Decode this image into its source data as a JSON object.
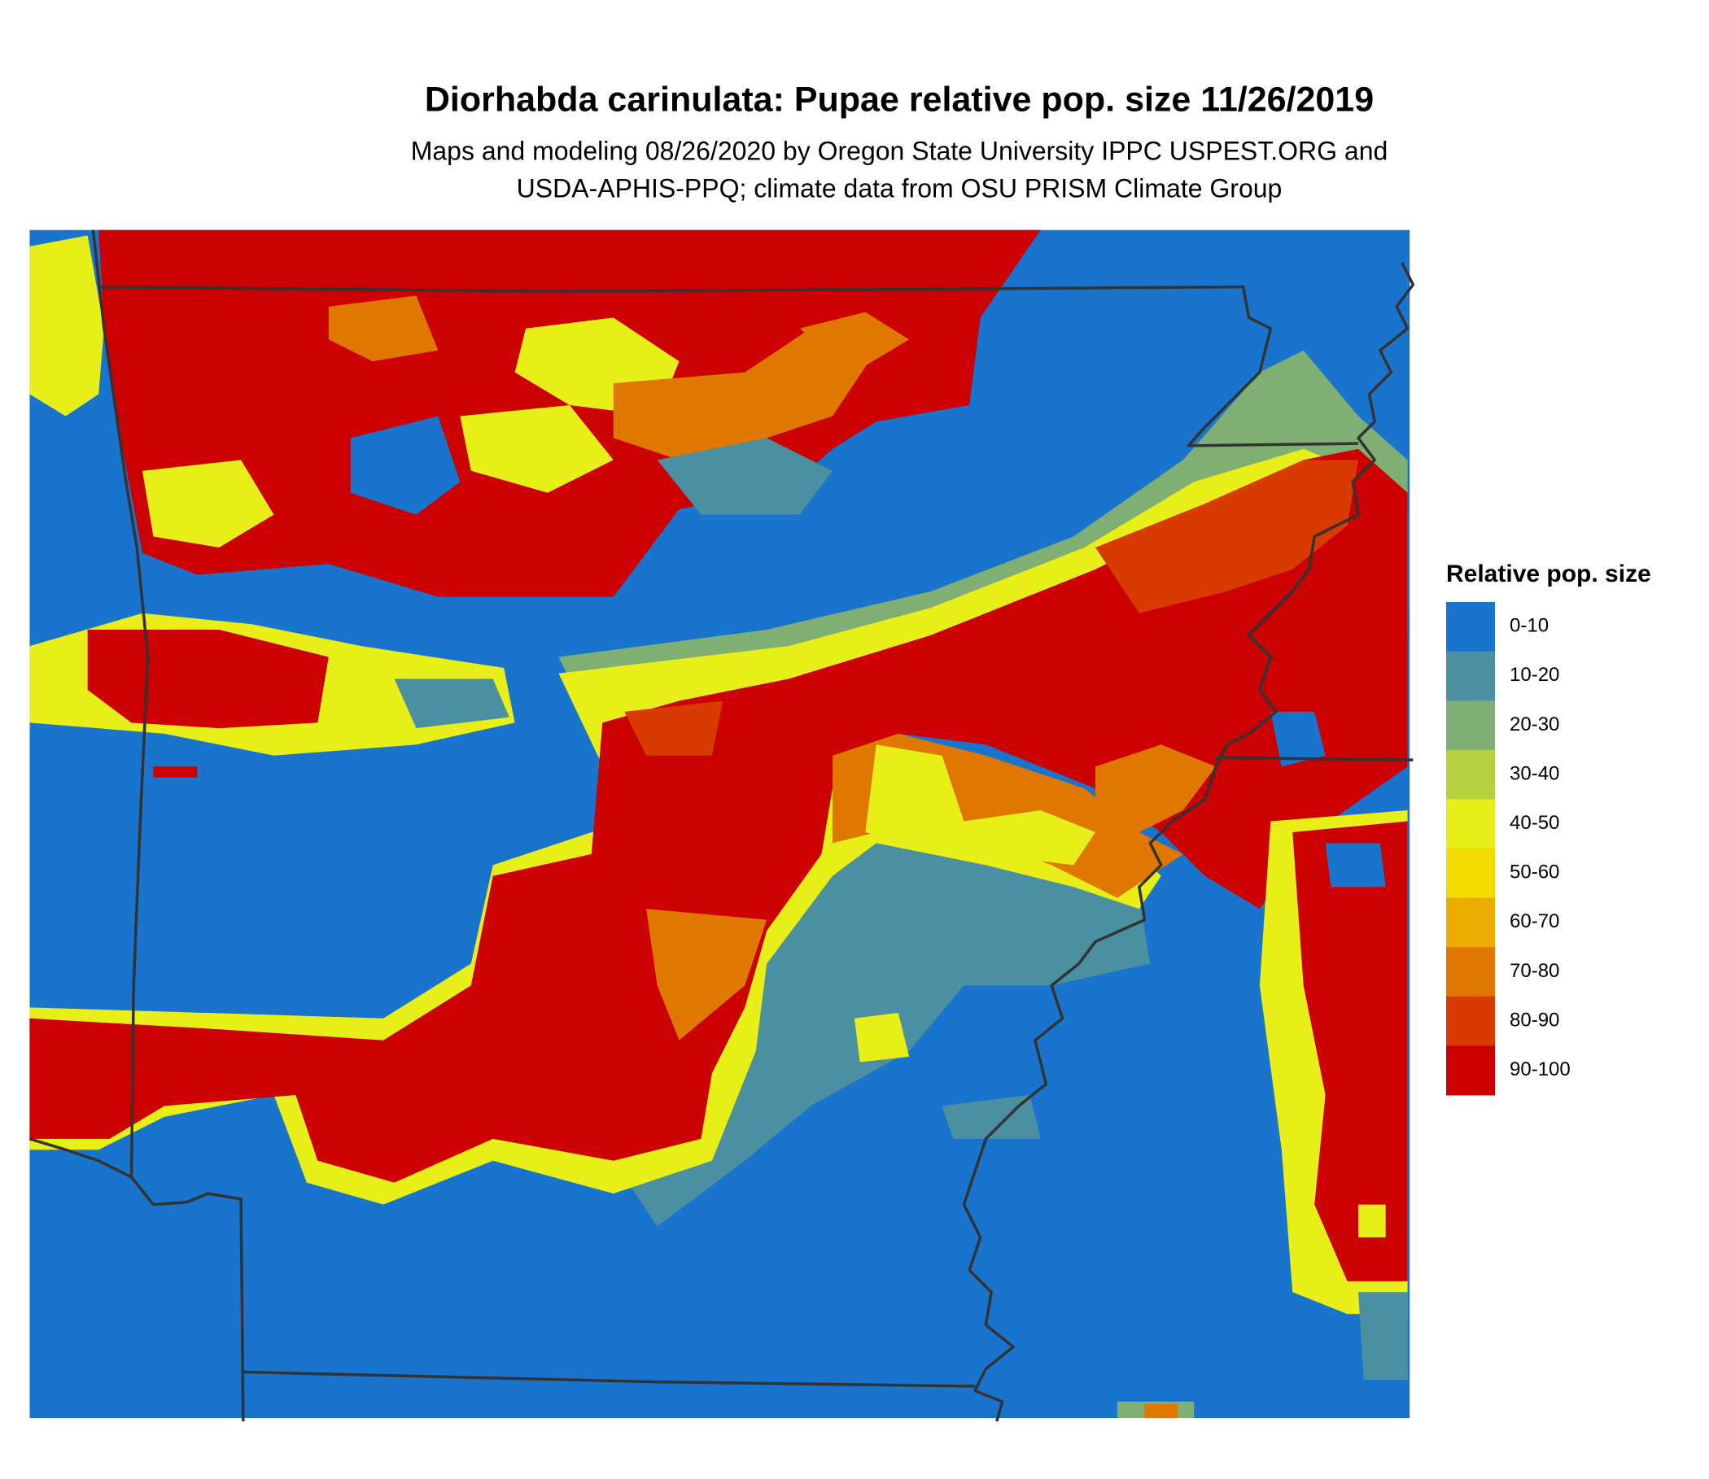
{
  "title": "Diorhabda carinulata: Pupae relative pop. size 11/26/2019",
  "subtitle": [
    "Maps and modeling 08/26/2020 by Oregon State University IPPC USPEST.ORG and",
    "USDA-APHIS-PPQ; climate data from OSU PRISM Climate Group"
  ],
  "legend": {
    "title": "Relative pop. size",
    "items": [
      {
        "label": "0-10",
        "color": "#1874cd"
      },
      {
        "label": "10-20",
        "color": "#4a90a0"
      },
      {
        "label": "20-30",
        "color": "#7faf72"
      },
      {
        "label": "30-40",
        "color": "#b4d140"
      },
      {
        "label": "40-50",
        "color": "#e8ee18"
      },
      {
        "label": "50-60",
        "color": "#f5dc00"
      },
      {
        "label": "60-70",
        "color": "#ebae00"
      },
      {
        "label": "70-80",
        "color": "#e07800"
      },
      {
        "label": "80-90",
        "color": "#d83a00"
      },
      {
        "label": "90-100",
        "color": "#cc0000"
      }
    ]
  }
}
